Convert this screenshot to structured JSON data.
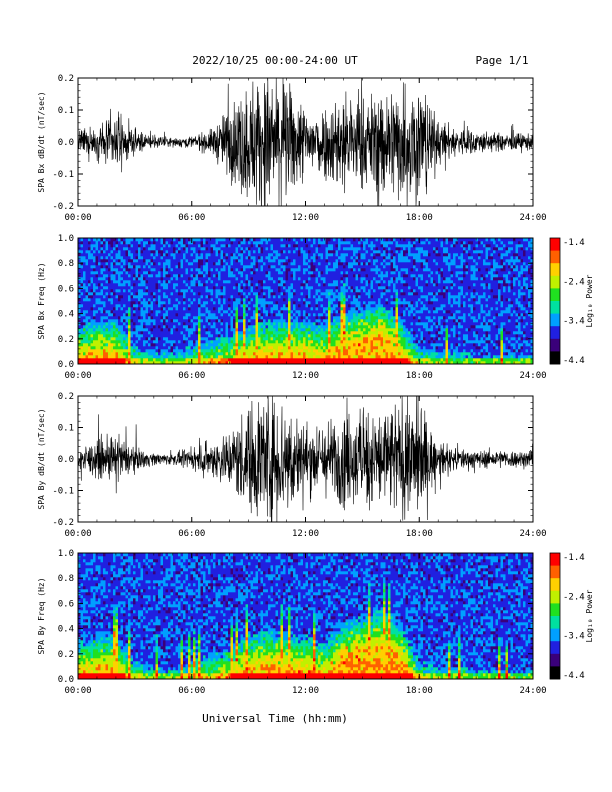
{
  "header": {
    "date_range": "2022/10/25  00:00-24:00 UT",
    "page": "Page 1/1"
  },
  "x_axis": {
    "label": "Universal Time (hh:mm)",
    "ticks": [
      "00:00",
      "06:00",
      "12:00",
      "18:00",
      "24:00"
    ],
    "range_hours": [
      0,
      24
    ]
  },
  "colorbar": {
    "label": "Log₁₀ Power",
    "ticks": [
      "-1.4",
      "-2.4",
      "-3.4",
      "-4.4"
    ],
    "range": [
      -4.4,
      -1.4
    ],
    "colors": [
      "#000000",
      "#3a007a",
      "#2020e0",
      "#00a0ff",
      "#00e0a0",
      "#20e020",
      "#c0f000",
      "#ffd000",
      "#ff6000",
      "#ff0000"
    ]
  },
  "chart_data": [
    {
      "type": "line",
      "ylabel": "SPA Bx dB/dt (nT/sec)",
      "ylim": [
        -0.2,
        0.2
      ],
      "yticks": [
        "0.2",
        "0.1",
        "0.0",
        "-0.1",
        "-0.2"
      ],
      "series_color": "#000000",
      "x_hours": [
        0,
        1,
        2,
        3,
        4,
        5,
        6,
        7,
        8,
        9,
        10,
        11,
        12,
        13,
        14,
        15,
        16,
        17,
        18,
        19,
        20,
        21,
        22,
        23,
        24
      ],
      "amplitude_envelope": [
        0.04,
        0.05,
        0.09,
        0.04,
        0.02,
        0.015,
        0.02,
        0.04,
        0.12,
        0.2,
        0.25,
        0.2,
        0.12,
        0.12,
        0.18,
        0.14,
        0.18,
        0.2,
        0.22,
        0.07,
        0.05,
        0.04,
        0.03,
        0.03,
        0.03
      ]
    },
    {
      "type": "heatmap",
      "ylabel": "SPA Bx Freq (Hz)",
      "ylim": [
        0.0,
        1.0
      ],
      "yticks": [
        "1.0",
        "0.8",
        "0.6",
        "0.4",
        "0.2",
        "0.0"
      ],
      "x_hours": [
        0,
        1,
        2,
        3,
        4,
        5,
        6,
        7,
        8,
        9,
        10,
        11,
        12,
        13,
        14,
        15,
        16,
        17,
        18,
        19,
        20,
        21,
        22,
        23,
        24
      ],
      "activity_top_hz": [
        0.3,
        0.35,
        0.35,
        0.15,
        0.1,
        0.1,
        0.15,
        0.2,
        0.25,
        0.3,
        0.35,
        0.35,
        0.35,
        0.3,
        0.4,
        0.45,
        0.5,
        0.35,
        0.15,
        0.1,
        0.1,
        0.08,
        0.08,
        0.08,
        0.08
      ]
    },
    {
      "type": "line",
      "ylabel": "SPA By dB/dt (nT/sec)",
      "ylim": [
        -0.2,
        0.2
      ],
      "yticks": [
        "0.2",
        "0.1",
        "0.0",
        "-0.1",
        "-0.2"
      ],
      "series_color": "#000000",
      "x_hours": [
        0,
        1,
        2,
        3,
        4,
        5,
        6,
        7,
        8,
        9,
        10,
        11,
        12,
        13,
        14,
        15,
        16,
        17,
        18,
        19,
        20,
        21,
        22,
        23,
        24
      ],
      "amplitude_envelope": [
        0.04,
        0.06,
        0.08,
        0.04,
        0.02,
        0.02,
        0.03,
        0.06,
        0.1,
        0.18,
        0.25,
        0.2,
        0.12,
        0.12,
        0.16,
        0.16,
        0.18,
        0.2,
        0.2,
        0.05,
        0.04,
        0.03,
        0.03,
        0.03,
        0.03
      ]
    },
    {
      "type": "heatmap",
      "ylabel": "SPA By Freq (Hz)",
      "ylim": [
        0.0,
        1.0
      ],
      "yticks": [
        "1.0",
        "0.8",
        "0.6",
        "0.4",
        "0.2",
        "0.0"
      ],
      "x_hours": [
        0,
        1,
        2,
        3,
        4,
        5,
        6,
        7,
        8,
        9,
        10,
        11,
        12,
        13,
        14,
        15,
        16,
        17,
        18,
        19,
        20,
        21,
        22,
        23,
        24
      ],
      "activity_top_hz": [
        0.3,
        0.35,
        0.35,
        0.15,
        0.1,
        0.1,
        0.15,
        0.2,
        0.25,
        0.35,
        0.4,
        0.35,
        0.35,
        0.3,
        0.45,
        0.5,
        0.55,
        0.45,
        0.15,
        0.1,
        0.1,
        0.08,
        0.08,
        0.08,
        0.08
      ]
    }
  ]
}
